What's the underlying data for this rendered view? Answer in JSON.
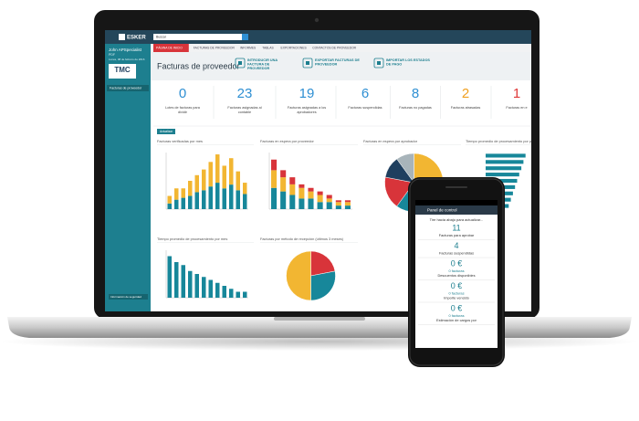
{
  "topbar": {
    "logo": "ESKER",
    "search": "Buscar"
  },
  "sidebar": {
    "user": "John APSpecialist",
    "role": "PDF",
    "date": "Lunes, 08 de febrero de 2016",
    "brand": "TMC",
    "menu": "Facturas de proveedor",
    "security": "Información de seguridad"
  },
  "nav": [
    "PÁGINA DE INICIO",
    "FACTURAS DE PROVEEDOR",
    "INFORMES",
    "TABLAS",
    "EXPORTACIONES",
    "CONTACTOS DE PROVEEDOR"
  ],
  "header": {
    "title": "Facturas de proveedor",
    "actions": [
      {
        "lines": [
          "INTRODUCIR UNA",
          "FACTURA DE",
          "PROVEEDOR"
        ]
      },
      {
        "lines": [
          "EXPORTAR FACTURAS DE",
          "PROVEEDOR"
        ]
      },
      {
        "lines": [
          "IMPORTAR LOS ESTADOS",
          "DE PAGO"
        ]
      }
    ]
  },
  "kpis": [
    {
      "value": "0",
      "lines": [
        "Lotes de facturas para",
        "dividir"
      ],
      "color": "#2e8fd3"
    },
    {
      "value": "23",
      "lines": [
        "Facturas asignadas al",
        "contable"
      ],
      "color": "#2e8fd3"
    },
    {
      "value": "19",
      "lines": [
        "Facturas asignadas a los",
        "aprobadores"
      ],
      "color": "#2e8fd3"
    },
    {
      "value": "6",
      "lines": [
        "Facturas suspendidas"
      ],
      "color": "#2e8fd3"
    },
    {
      "value": "8",
      "lines": [
        "Facturas no pagadas"
      ],
      "color": "#2e8fd3"
    },
    {
      "value": "2",
      "lines": [
        "Facturas atrasadas"
      ],
      "color": "#f0a020"
    },
    {
      "value": "1",
      "lines": [
        "Facturas en e"
      ],
      "color": "#e03a3a"
    }
  ],
  "refresh": "Actualizar",
  "charts": [
    {
      "type": "stacked",
      "title": "Facturas verificadas por mes",
      "ylim": [
        0,
        30
      ],
      "series": [
        {
          "color": "#17879a",
          "values": [
            3,
            5,
            6,
            7,
            9,
            10,
            12,
            14,
            11,
            13,
            10,
            8
          ]
        },
        {
          "color": "#f2b632",
          "values": [
            4,
            6,
            5,
            8,
            9,
            11,
            13,
            15,
            12,
            14,
            10,
            6
          ]
        }
      ]
    },
    {
      "type": "stacked",
      "title": "Facturas en espera por proveedor",
      "ylim": [
        0,
        16
      ],
      "series": [
        {
          "color": "#17879a",
          "values": [
            6,
            5,
            4,
            3,
            3,
            2,
            2,
            1,
            1
          ]
        },
        {
          "color": "#f2b632",
          "values": [
            5,
            4,
            3,
            3,
            2,
            2,
            1,
            1,
            1
          ]
        },
        {
          "color": "#d8343a",
          "values": [
            3,
            2,
            2,
            1,
            1,
            1,
            1,
            0.5,
            0.5
          ]
        }
      ]
    },
    {
      "type": "pie",
      "title": "Facturas en espera por aprobador",
      "values": [
        38,
        22,
        18,
        12,
        10
      ],
      "colors": [
        "#f2b632",
        "#17879a",
        "#d8343a",
        "#1f3f5f",
        "#a8b4ba"
      ]
    },
    {
      "type": "hbar",
      "title": "Tiempo promedio de procesamiento por proveedor",
      "xlim": [
        0,
        100
      ],
      "color": "#17879a",
      "values": [
        95,
        90,
        85,
        80,
        75,
        70,
        65,
        60,
        55
      ]
    },
    {
      "type": "bar",
      "title": "Tiempo promedio de procesamiento por mes",
      "ylim": [
        0,
        16
      ],
      "color": "#17879a",
      "values": [
        14,
        12,
        11,
        9,
        8,
        7,
        6,
        5,
        4,
        3,
        2,
        2
      ]
    },
    {
      "type": "pie",
      "title": "Facturas por método de recepción (últimos 3 meses)",
      "values": [
        22,
        28,
        50
      ],
      "colors": [
        "#d8343a",
        "#17879a",
        "#f2b632"
      ]
    }
  ],
  "phone": {
    "title": "Panel de control",
    "pull": "Tire hacia abajo para actualizar...",
    "items": [
      {
        "value": "11",
        "lines": [
          "Facturas para aprobar"
        ]
      },
      {
        "value": "4",
        "lines": [
          "Facturas suspendidas"
        ]
      },
      {
        "value": "0 €",
        "lines": [
          "0 facturas",
          "Descuentos disponibles"
        ]
      },
      {
        "value": "0 €",
        "lines": [
          "0 facturas",
          "Importe vencido"
        ]
      },
      {
        "value": "0 €",
        "lines": [
          "0 facturas",
          "Estimación de cargos por"
        ]
      }
    ]
  }
}
